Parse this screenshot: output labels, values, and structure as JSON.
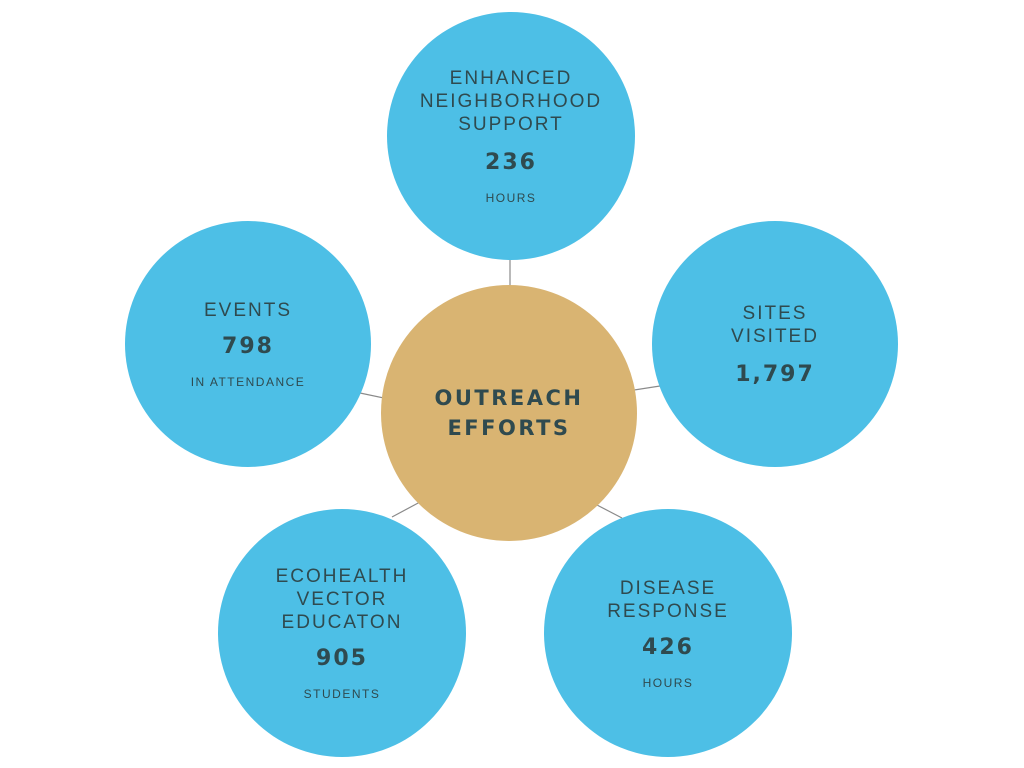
{
  "center": {
    "title": "OUTREACH\nEFFORTS",
    "color": "#d9b472"
  },
  "node_color": "#4dbfe6",
  "nodes": {
    "top": {
      "label": "ENHANCED\nNEIGHBORHOOD\nSUPPORT",
      "value": "236",
      "unit": "HOURS"
    },
    "left": {
      "label": "EVENTS",
      "value": "798",
      "unit": "IN ATTENDANCE"
    },
    "right": {
      "label": "SITES\nVISITED",
      "value": "1,797"
    },
    "bleft": {
      "label": "ECOHEALTH\nVECTOR\nEDUCATON",
      "value": "905",
      "unit": "STUDENTS"
    },
    "bright": {
      "label": "DISEASE\nRESPONSE",
      "value": "426",
      "unit": "HOURS"
    }
  }
}
